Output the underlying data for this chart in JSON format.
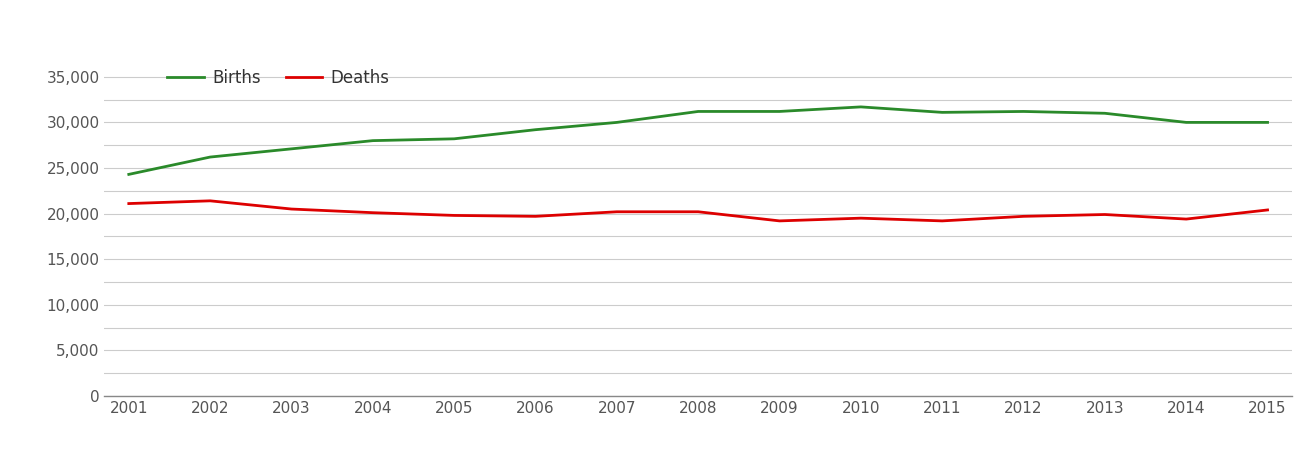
{
  "years": [
    2001,
    2002,
    2003,
    2004,
    2005,
    2006,
    2007,
    2008,
    2009,
    2010,
    2011,
    2012,
    2013,
    2014,
    2015
  ],
  "births": [
    24300,
    26200,
    27100,
    28000,
    28200,
    29200,
    30000,
    31200,
    31200,
    31700,
    31100,
    31200,
    31000,
    30000,
    30000
  ],
  "deaths": [
    21100,
    21400,
    20500,
    20100,
    19800,
    19700,
    20200,
    20200,
    19200,
    19500,
    19200,
    19700,
    19900,
    19400,
    20400
  ],
  "births_color": "#2a8a2a",
  "deaths_color": "#dd0000",
  "line_width": 2.0,
  "background_color": "#ffffff",
  "grid_color": "#cccccc",
  "ylim": [
    0,
    37500
  ],
  "yticks": [
    0,
    5000,
    10000,
    15000,
    20000,
    25000,
    30000,
    35000
  ],
  "extra_yticks": [
    2500,
    7500,
    12500,
    17500,
    22500,
    27500,
    32500
  ],
  "legend_births": "Births",
  "legend_deaths": "Deaths",
  "tick_fontsize": 11,
  "legend_fontsize": 12,
  "tick_color": "#555555"
}
